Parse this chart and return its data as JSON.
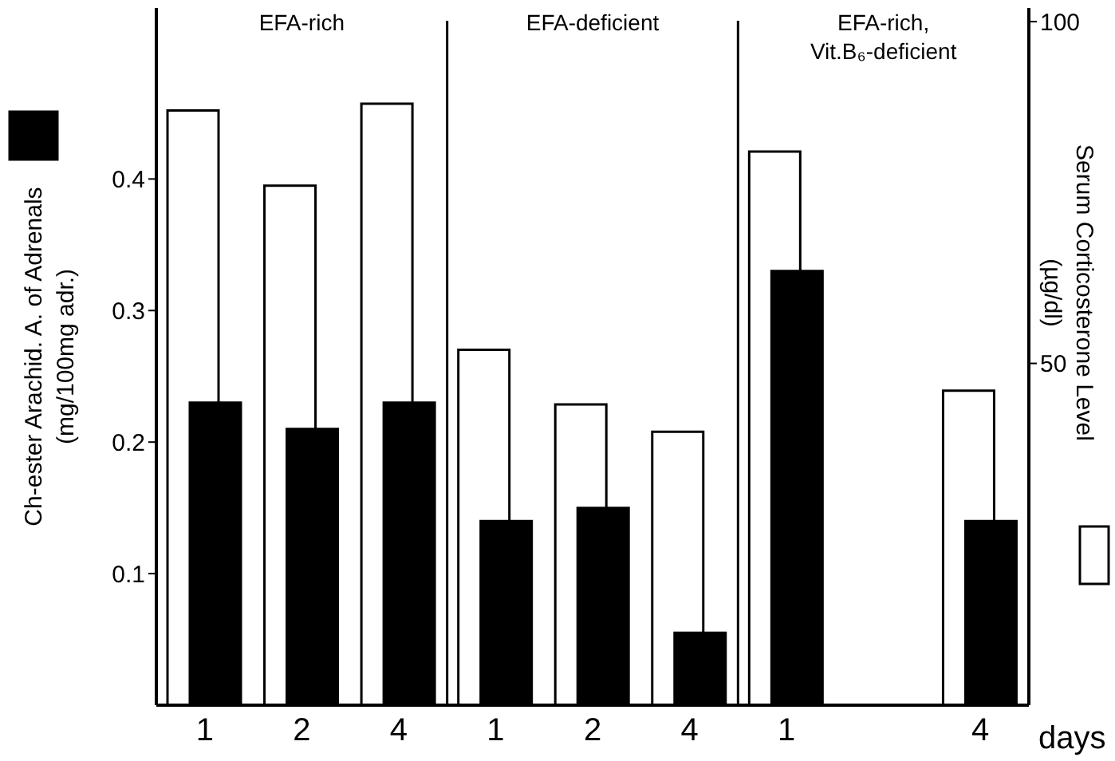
{
  "chart_data": {
    "type": "bar",
    "categories": [
      "1",
      "2",
      "4",
      "1",
      "2",
      "4",
      "1",
      null,
      "4"
    ],
    "xlabel": "days",
    "ylabel": "Ch-ester Arachid. A. of Adrenals\n(mg/100mg adr.)",
    "y2label": "Serum Corticosterone Level\n(µg/dl)",
    "annotations": [
      "EFA-rich",
      "EFA-deficient",
      "EFA-rich,\nVit.B₆-deficient"
    ],
    "series": [
      {
        "color": "#ffffff",
        "axis": "y2",
        "values": [
          87,
          76,
          88,
          52,
          44,
          40,
          81,
          null,
          46
        ]
      },
      {
        "color": "#000000",
        "values": [
          0.23,
          0.21,
          0.23,
          0.14,
          0.15,
          0.055,
          0.33,
          null,
          0.14
        ]
      }
    ],
    "ylim": [
      0,
      0.53
    ],
    "yticks": [
      0.1,
      0.2,
      0.3,
      0.4
    ],
    "y2lim": [
      0,
      102
    ],
    "y2ticks": [
      50,
      100
    ]
  }
}
